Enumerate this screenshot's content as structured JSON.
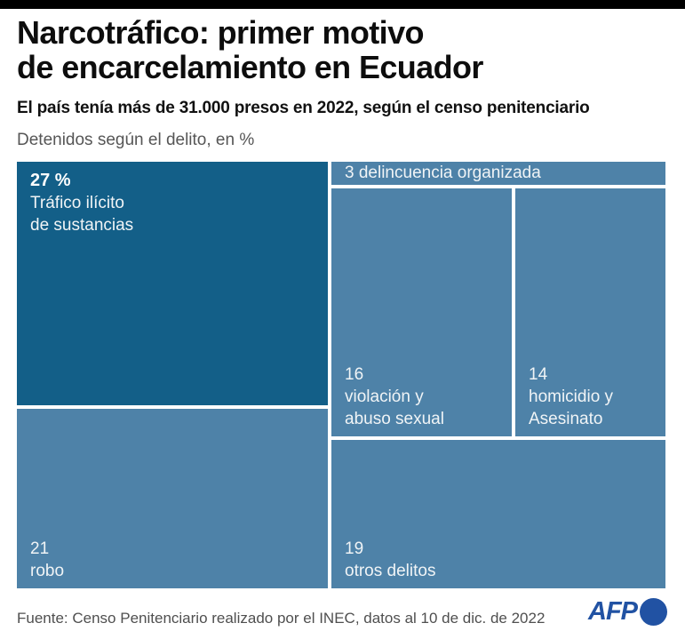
{
  "header": {
    "title": "Narcotráfico: primer motivo\nde encarcelamiento en Ecuador",
    "subtitle": "El país tenía más de 31.000 presos en 2022, según el censo penitenciario",
    "caption": "Detenidos según el delito, en %"
  },
  "footer": {
    "source": "Fuente: Censo Penitenciario realizado por el INEC, datos al 10 de dic. de 2022",
    "logo_text": "AFP"
  },
  "colors": {
    "top_bar": "#000000",
    "treemap_dark_blue": "#135f88",
    "treemap_light_blue": "#4e82a8",
    "cell_text": "#f0f4f6",
    "muted_text": "#565656",
    "afp_blue": "#2152a3"
  },
  "chart_data": {
    "type": "treemap",
    "title": "Detenidos según el delito, en %",
    "unit": "%",
    "items": [
      {
        "category": "Tráfico ilícito de sustancias",
        "value": 27,
        "value_display": "27 %",
        "label_display": "Tráfico ilícito\nde sustancias",
        "highlight": true
      },
      {
        "category": "delincuencia organizada",
        "value": 3,
        "value_display": "3",
        "label_display": "delincuencia organizada",
        "highlight": false
      },
      {
        "category": "violación y abuso sexual",
        "value": 16,
        "value_display": "16",
        "label_display": "violación y\nabuso sexual",
        "highlight": false
      },
      {
        "category": "homicidio y Asesinato",
        "value": 14,
        "value_display": "14",
        "label_display": "homicidio y\nAsesinato",
        "highlight": false
      },
      {
        "category": "robo",
        "value": 21,
        "value_display": "21",
        "label_display": "robo",
        "highlight": false
      },
      {
        "category": "otros delitos",
        "value": 19,
        "value_display": "19",
        "label_display": "otros delitos",
        "highlight": false
      }
    ]
  }
}
